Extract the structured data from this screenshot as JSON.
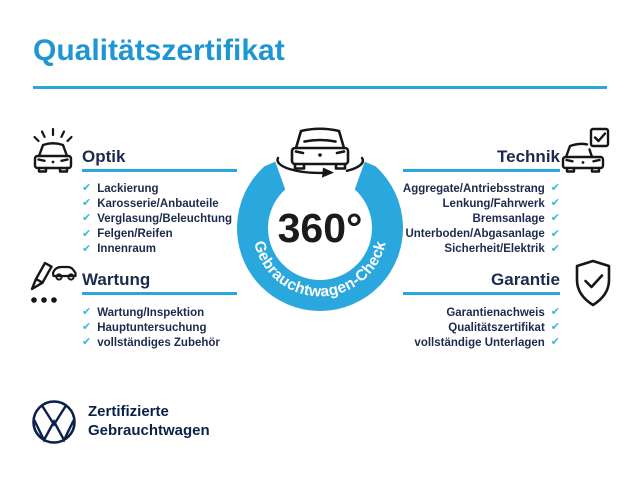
{
  "title": "Qualitätszertifikat",
  "colors": {
    "accent_cyan": "#2aa7dd",
    "title_blue": "#1f96d2",
    "check_blue": "#39b5e7",
    "text_navy": "#1c2b4d",
    "logo_navy": "#0c2149",
    "icon_black": "#161616",
    "ring_label_white": "#ffffff"
  },
  "center": {
    "value": "360°",
    "ring_label": "Gebrauchtwagen-Check",
    "icon": "car-rotation-icon"
  },
  "check_glyph": "✔",
  "sections": [
    {
      "id": "optik",
      "label": "Optik",
      "icon": "car-shine-icon",
      "side": "left",
      "items": [
        "Lackierung",
        "Karosserie/Anbauteile",
        "Verglasung/Beleuchtung",
        "Felgen/Reifen",
        "Innenraum"
      ]
    },
    {
      "id": "technik",
      "label": "Technik",
      "icon": "car-checkbox-icon",
      "side": "right",
      "items": [
        "Aggregate/Antriebsstrang",
        "Lenkung/Fahrwerk",
        "Bremsanlage",
        "Unterboden/Abgasanlage",
        "Sicherheit/Elektrik"
      ]
    },
    {
      "id": "wartung",
      "label": "Wartung",
      "icon": "pencil-car-icon",
      "side": "left",
      "items": [
        "Wartung/Inspektion",
        "Hauptuntersuchung",
        "vollständiges Zubehör"
      ]
    },
    {
      "id": "garantie",
      "label": "Garantie",
      "icon": "shield-check-icon",
      "side": "right",
      "items": [
        "Garantienachweis",
        "Qualitätszertifikat",
        "vollständige Unterlagen"
      ]
    }
  ],
  "footer": {
    "line1": "Zertifizierte",
    "line2": "Gebrauchtwagen",
    "logo": "vw-logo"
  }
}
